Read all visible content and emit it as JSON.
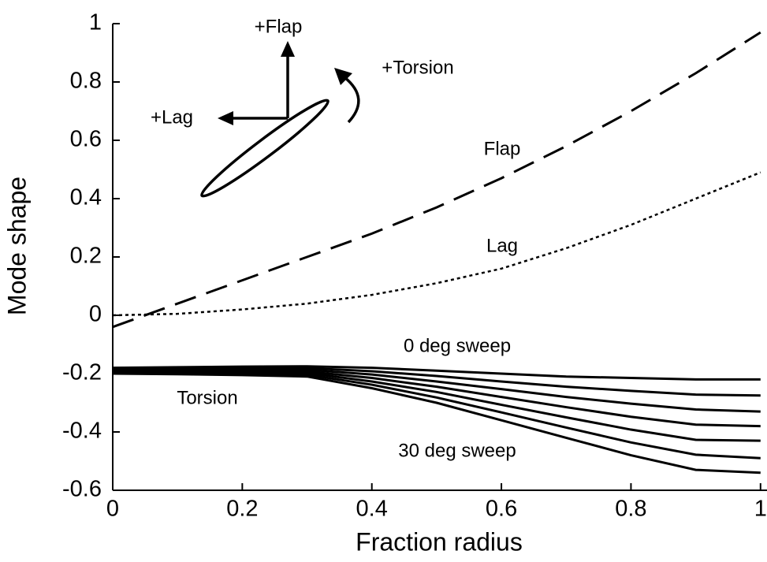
{
  "chart_data": {
    "type": "line",
    "x_label": "Fraction radius",
    "y_label": "Mode shape",
    "x": [
      0,
      0.1,
      0.2,
      0.3,
      0.4,
      0.5,
      0.6,
      0.7,
      0.8,
      0.9,
      1
    ],
    "series": [
      {
        "name": "Flap",
        "color": "#000000",
        "dash": "dashed",
        "values": [
          -0.04,
          0.04,
          0.12,
          0.2,
          0.28,
          0.37,
          0.47,
          0.58,
          0.7,
          0.83,
          0.97
        ]
      },
      {
        "name": "Lag",
        "color": "#000000",
        "dash": "dotted",
        "values": [
          0,
          0.005,
          0.02,
          0.04,
          0.07,
          0.11,
          0.16,
          0.23,
          0.31,
          0.4,
          0.49
        ]
      },
      {
        "name": "0 deg sweep",
        "color": "#000000",
        "dash": "solid",
        "values": [
          -0.18,
          -0.178,
          -0.176,
          -0.175,
          -0.18,
          -0.19,
          -0.2,
          -0.21,
          -0.215,
          -0.22,
          -0.22
        ]
      },
      {
        "color": "#000000",
        "dash": "solid",
        "values": [
          -0.183,
          -0.182,
          -0.181,
          -0.181,
          -0.192,
          -0.208,
          -0.227,
          -0.245,
          -0.259,
          -0.272,
          -0.275
        ]
      },
      {
        "color": "#000000",
        "dash": "solid",
        "values": [
          -0.187,
          -0.186,
          -0.186,
          -0.187,
          -0.203,
          -0.227,
          -0.253,
          -0.28,
          -0.303,
          -0.323,
          -0.33
        ]
      },
      {
        "color": "#000000",
        "dash": "solid",
        "values": [
          -0.19,
          -0.19,
          -0.19,
          -0.193,
          -0.215,
          -0.245,
          -0.28,
          -0.315,
          -0.348,
          -0.375,
          -0.38
        ]
      },
      {
        "color": "#000000",
        "dash": "solid",
        "values": [
          -0.193,
          -0.194,
          -0.195,
          -0.198,
          -0.227,
          -0.263,
          -0.307,
          -0.35,
          -0.392,
          -0.427,
          -0.43
        ]
      },
      {
        "color": "#000000",
        "dash": "solid",
        "values": [
          -0.197,
          -0.198,
          -0.2,
          -0.204,
          -0.238,
          -0.282,
          -0.333,
          -0.385,
          -0.436,
          -0.478,
          -0.49
        ]
      },
      {
        "name": "30 deg sweep",
        "color": "#000000",
        "dash": "solid",
        "values": [
          -0.2,
          -0.202,
          -0.205,
          -0.21,
          -0.25,
          -0.3,
          -0.36,
          -0.42,
          -0.48,
          -0.53,
          -0.54
        ]
      }
    ],
    "annotations": [
      "Torsion",
      "+Flap",
      "+Torsion",
      "+Lag"
    ],
    "xlim": [
      0,
      1.01
    ],
    "xticks": [
      0,
      0.2,
      0.4,
      0.6,
      0.8,
      1
    ],
    "ylim": [
      -0.6,
      1
    ],
    "yticks": [
      -0.6,
      -0.4,
      -0.2,
      0,
      0.2,
      0.4,
      0.6,
      0.8,
      1
    ],
    "grid": false
  }
}
